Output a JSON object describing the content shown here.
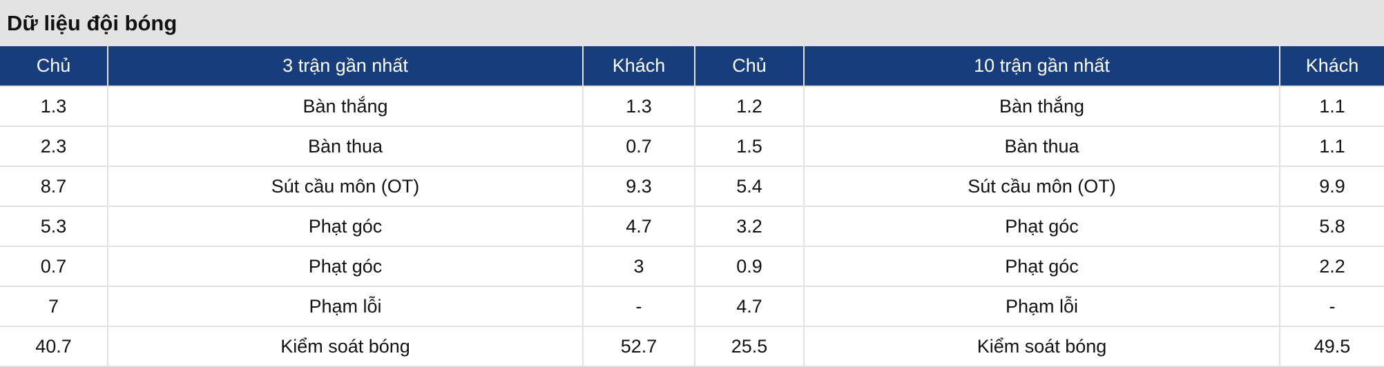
{
  "title": "Dữ liệu đội bóng",
  "headers": [
    "Chủ",
    "3 trận gần nhất",
    "Khách",
    "Chủ",
    "10 trận gần nhất",
    "Khách"
  ],
  "rows": [
    [
      "1.3",
      "Bàn thắng",
      "1.3",
      "1.2",
      "Bàn thắng",
      "1.1"
    ],
    [
      "2.3",
      "Bàn thua",
      "0.7",
      "1.5",
      "Bàn thua",
      "1.1"
    ],
    [
      "8.7",
      "Sút cầu môn (OT)",
      "9.3",
      "5.4",
      "Sút cầu môn (OT)",
      "9.9"
    ],
    [
      "5.3",
      "Phạt góc",
      "4.7",
      "3.2",
      "Phạt góc",
      "5.8"
    ],
    [
      "0.7",
      "Phạt góc",
      "3",
      "0.9",
      "Phạt góc",
      "2.2"
    ],
    [
      "7",
      "Phạm lỗi",
      "-",
      "4.7",
      "Phạm lỗi",
      "-"
    ],
    [
      "40.7",
      "Kiểm soát bóng",
      "52.7",
      "25.5",
      "Kiểm soát bóng",
      "49.5"
    ]
  ],
  "colors": {
    "header_bg": "#173d7d",
    "title_bg": "#e3e3e3"
  }
}
